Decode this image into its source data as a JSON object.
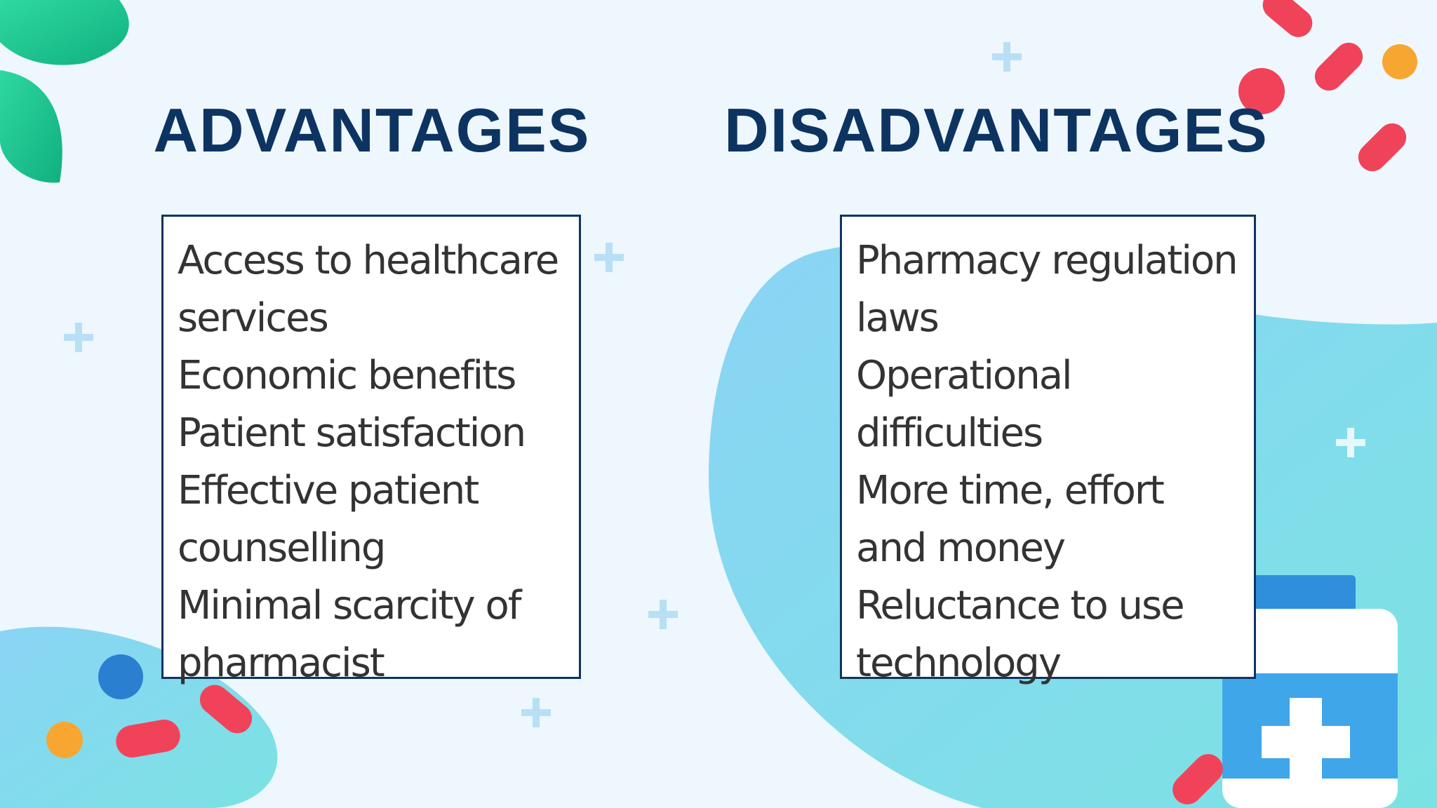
{
  "columns": [
    {
      "title": "ADVANTAGES",
      "items": [
        "Access to healthcare services",
        "Economic benefits",
        "Patient satisfaction",
        "Effective patient counselling",
        "Minimal scarcity of pharmacist"
      ]
    },
    {
      "title": "DISADVANTAGES",
      "items": [
        "Pharmacy regulation laws",
        "Operational difficulties",
        "More time, effort and money",
        "Reluctance to use technology"
      ]
    }
  ]
}
